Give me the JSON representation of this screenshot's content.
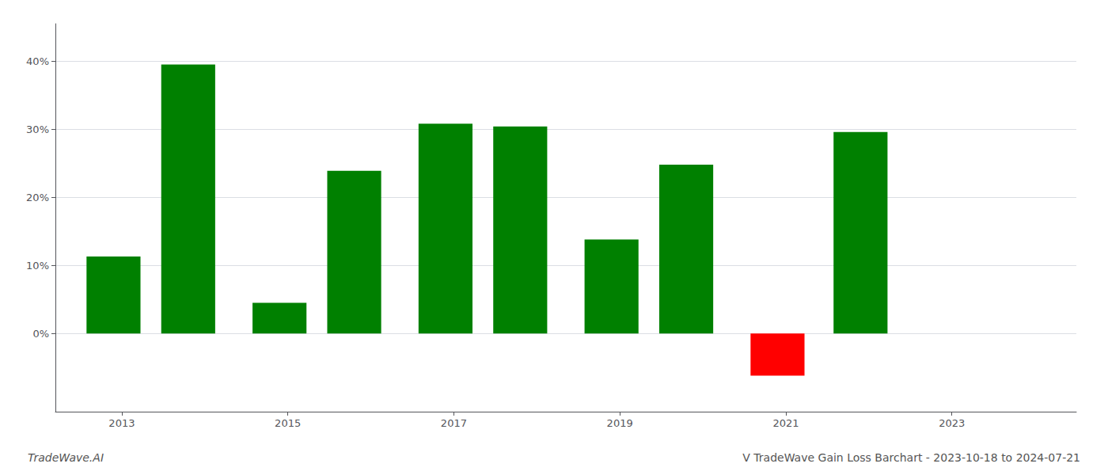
{
  "chart_data": {
    "type": "bar",
    "title": "V TradeWave Gain Loss Barchart - 2023-10-18 to 2024-07-21",
    "annotations": [
      "TradeWave.AI"
    ],
    "x": [
      2012.9,
      2013.8,
      2014.9,
      2015.8,
      2016.9,
      2017.8,
      2018.9,
      2019.8,
      2020.9,
      2021.9
    ],
    "values": [
      0.113,
      0.395,
      0.045,
      0.239,
      0.308,
      0.304,
      0.138,
      0.248,
      -0.062,
      0.296
    ],
    "colors": [
      "#008000",
      "#008000",
      "#008000",
      "#008000",
      "#008000",
      "#008000",
      "#008000",
      "#008000",
      "#ff0000",
      "#008000"
    ],
    "xlim": [
      2012.2,
      2024.5
    ],
    "xticks": [
      2013,
      2015,
      2017,
      2019,
      2021,
      2023
    ],
    "ylim": [
      -0.115,
      0.455
    ],
    "yticks": [
      {
        "value": 0.0,
        "label": "0%"
      },
      {
        "value": 0.1,
        "label": "10%"
      },
      {
        "value": 0.2,
        "label": "20%"
      },
      {
        "value": 0.3,
        "label": "30%"
      },
      {
        "value": 0.4,
        "label": "40%"
      }
    ],
    "grid": true
  }
}
